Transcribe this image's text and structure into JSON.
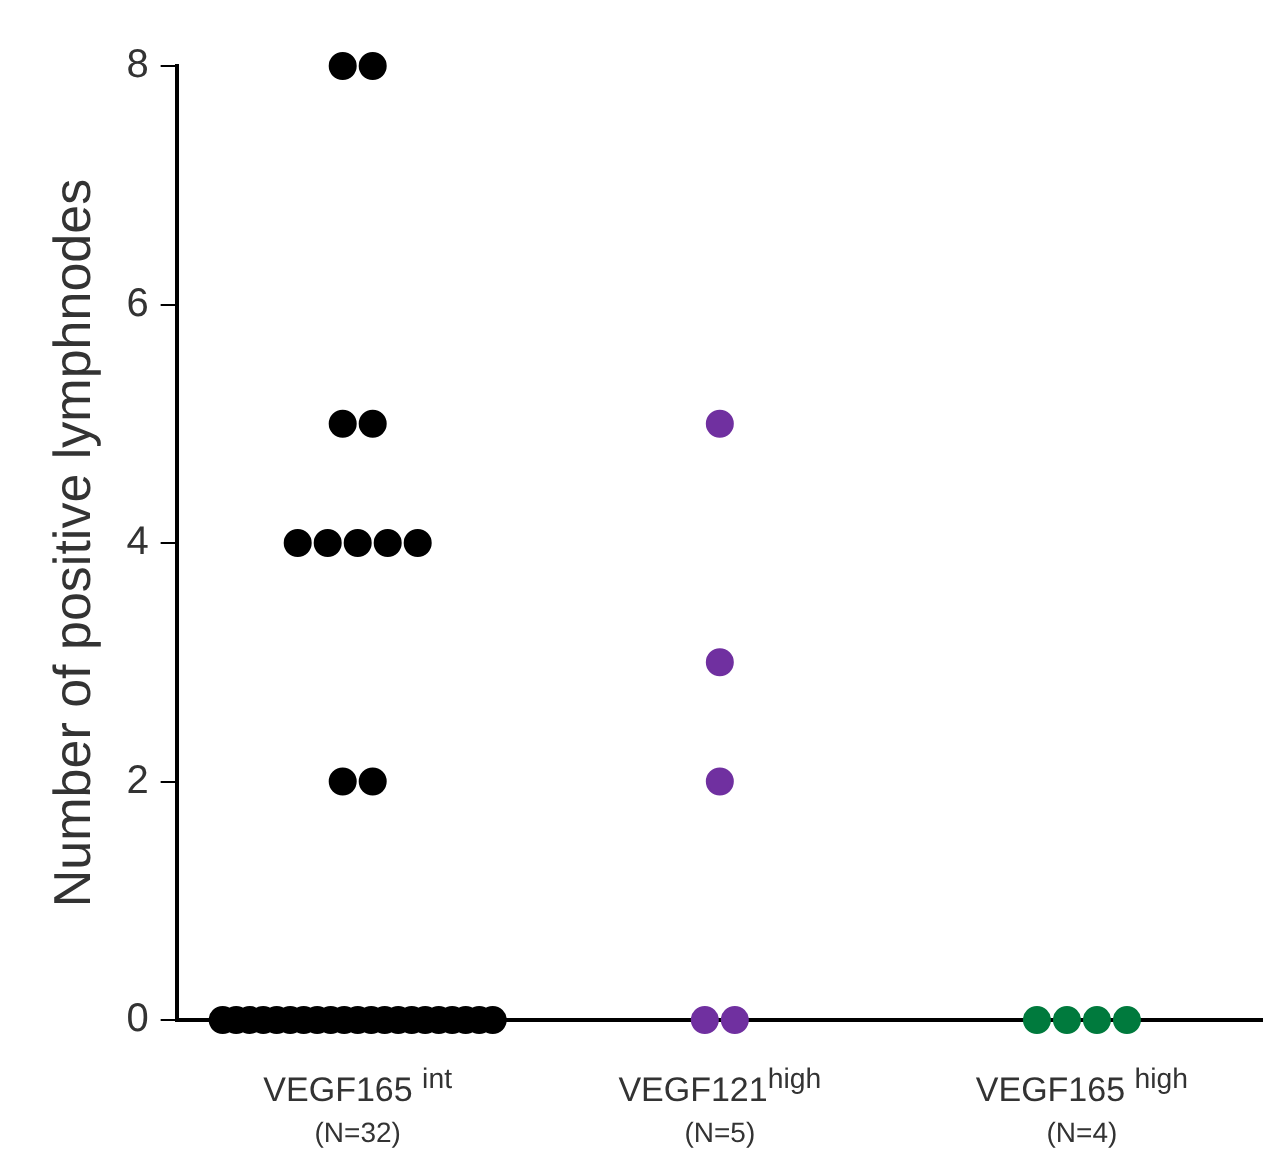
{
  "chart_data": {
    "type": "scatter",
    "ylabel": "Number of positive lymphnodes",
    "categories": [
      "VEGF165 $^{int}$\n(N=32)",
      "VEGF121$^{high}$\n(N=5)",
      "VEGF165 $^{high}$\n(N=4)"
    ],
    "ylim": [
      0,
      8
    ],
    "yticks": [
      0,
      2,
      4,
      6,
      8
    ],
    "grid": false,
    "legend": false,
    "marker": "circle",
    "series": [
      {
        "color": "#000000",
        "x": [
          "VEGF165 $^{int}$\n(N=32)",
          "VEGF165 $^{int}$\n(N=32)",
          "VEGF165 $^{int}$\n(N=32)",
          "VEGF165 $^{int}$\n(N=32)",
          "VEGF165 $^{int}$\n(N=32)",
          "VEGF165 $^{int}$\n(N=32)",
          "VEGF165 $^{int}$\n(N=32)",
          "VEGF165 $^{int}$\n(N=32)",
          "VEGF165 $^{int}$\n(N=32)",
          "VEGF165 $^{int}$\n(N=32)",
          "VEGF165 $^{int}$\n(N=32)",
          "VEGF165 $^{int}$\n(N=32)",
          "VEGF165 $^{int}$\n(N=32)",
          "VEGF165 $^{int}$\n(N=32)",
          "VEGF165 $^{int}$\n(N=32)",
          "VEGF165 $^{int}$\n(N=32)",
          "VEGF165 $^{int}$\n(N=32)",
          "VEGF165 $^{int}$\n(N=32)",
          "VEGF165 $^{int}$\n(N=32)",
          "VEGF165 $^{int}$\n(N=32)",
          "VEGF165 $^{int}$\n(N=32)",
          "VEGF165 $^{int}$\n(N=32)",
          "VEGF165 $^{int}$\n(N=32)",
          "VEGF165 $^{int}$\n(N=32)",
          "VEGF165 $^{int}$\n(N=32)",
          "VEGF165 $^{int}$\n(N=32)",
          "VEGF165 $^{int}$\n(N=32)",
          "VEGF165 $^{int}$\n(N=32)",
          "VEGF165 $^{int}$\n(N=32)",
          "VEGF165 $^{int}$\n(N=32)",
          "VEGF165 $^{int}$\n(N=32)",
          "VEGF165 $^{int}$\n(N=32)"
        ],
        "values": [
          8,
          8,
          5,
          5,
          4,
          4,
          4,
          4,
          4,
          2,
          2,
          0,
          0,
          0,
          0,
          0,
          0,
          0,
          0,
          0,
          0,
          0,
          0,
          0,
          0,
          0,
          0,
          0,
          0,
          0,
          0,
          0
        ]
      },
      {
        "color": "#7030a0",
        "x": [
          "VEGF121$^{high}$\n(N=5)",
          "VEGF121$^{high}$\n(N=5)",
          "VEGF121$^{high}$\n(N=5)",
          "VEGF121$^{high}$\n(N=5)",
          "VEGF121$^{high}$\n(N=5)"
        ],
        "values": [
          5,
          3,
          2,
          0,
          0
        ]
      },
      {
        "color": "#007a3d",
        "x": [
          "VEGF165 $^{high}$\n(N=4)",
          "VEGF165 $^{high}$\n(N=4)",
          "VEGF165 $^{high}$\n(N=4)",
          "VEGF165 $^{high}$\n(N=4)"
        ],
        "values": [
          0,
          0,
          0,
          0
        ]
      }
    ]
  }
}
